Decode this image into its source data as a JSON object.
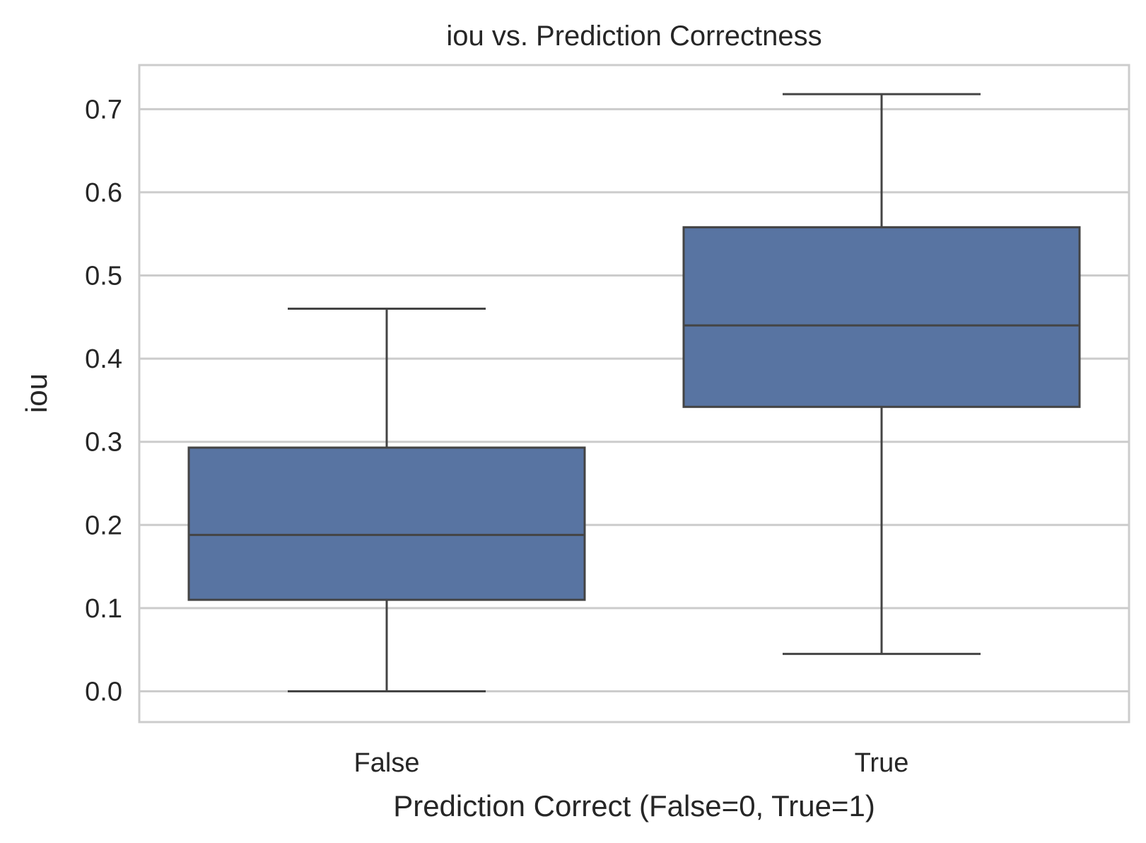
{
  "chart_data": {
    "type": "box",
    "title": "iou vs. Prediction Correctness",
    "xlabel": "Prediction Correct (False=0, True=1)",
    "ylabel": "iou",
    "ylim": [
      -0.037,
      0.753
    ],
    "yticks": [
      "0.0",
      "0.1",
      "0.2",
      "0.3",
      "0.4",
      "0.5",
      "0.6",
      "0.7"
    ],
    "grid": true,
    "categories": [
      "False",
      "True"
    ],
    "boxes": [
      {
        "category": "False",
        "whisker_low": 0.0,
        "q1": 0.11,
        "median": 0.188,
        "q3": 0.293,
        "whisker_high": 0.46
      },
      {
        "category": "True",
        "whisker_low": 0.045,
        "q1": 0.342,
        "median": 0.44,
        "q3": 0.558,
        "whisker_high": 0.718
      }
    ]
  },
  "colors": {
    "box_fill": "#5874a2",
    "box_edge": "#444444",
    "grid": "#cccccc",
    "frame": "#cccccc"
  }
}
